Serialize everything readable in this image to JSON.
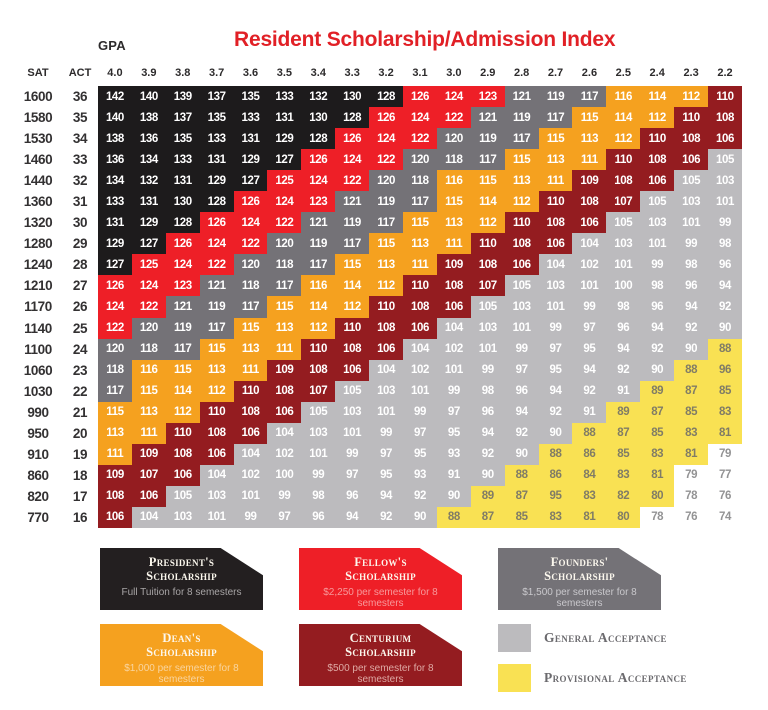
{
  "header": {
    "title": "Resident Scholarship/Admission Index",
    "title_color": "#e12026",
    "gpa_label": "GPA"
  },
  "chart_data": {
    "type": "heatmap",
    "title": "Resident Scholarship/Admission Index",
    "x_label": "GPA",
    "y_label_primary": "SAT",
    "y_label_secondary": "ACT",
    "x_categories": [
      "4.0",
      "3.9",
      "3.8",
      "3.7",
      "3.6",
      "3.5",
      "3.4",
      "3.3",
      "3.2",
      "3.1",
      "3.0",
      "2.9",
      "2.8",
      "2.7",
      "2.6",
      "2.5",
      "2.4",
      "2.3",
      "2.2"
    ],
    "tiers": {
      "p": {
        "name": "presidents-scholarship",
        "bg": "#1d1b1c",
        "fg": "#ffffff"
      },
      "f": {
        "name": "fellows-scholarship",
        "bg": "#ee1f27",
        "fg": "#ffffff"
      },
      "o": {
        "name": "founders-scholarship",
        "bg": "#747277",
        "fg": "#ffffff"
      },
      "d": {
        "name": "deans-scholarship",
        "bg": "#f5a11f",
        "fg": "#ffffff"
      },
      "c": {
        "name": "centurium-scholarship",
        "bg": "#941c20",
        "fg": "#ffffff"
      },
      "g": {
        "name": "general-acceptance",
        "bg": "#bcbbbe",
        "fg": "#ffffff"
      },
      "y": {
        "name": "provisional-acceptance",
        "bg": "#f9e153",
        "fg": "#807c66"
      },
      "w": {
        "name": "no-award",
        "bg": "#ffffff",
        "fg": "#939394"
      }
    },
    "rows": [
      {
        "sat": "1600",
        "act": "36",
        "values": [
          142,
          140,
          139,
          137,
          135,
          133,
          132,
          130,
          128,
          126,
          124,
          123,
          121,
          119,
          117,
          116,
          114,
          112,
          110
        ],
        "tiers": "pppppppppfffooodddc"
      },
      {
        "sat": "1580",
        "act": "35",
        "values": [
          140,
          138,
          137,
          135,
          133,
          131,
          130,
          128,
          126,
          124,
          122,
          121,
          119,
          117,
          115,
          114,
          112,
          110,
          108
        ],
        "tiers": "ppppppppfffooodddcc"
      },
      {
        "sat": "1530",
        "act": "34",
        "values": [
          138,
          136,
          135,
          133,
          131,
          129,
          128,
          126,
          124,
          122,
          120,
          119,
          117,
          115,
          113,
          112,
          110,
          108,
          106
        ],
        "tiers": "pppppppfffooodddccc"
      },
      {
        "sat": "1460",
        "act": "33",
        "values": [
          136,
          134,
          133,
          131,
          129,
          127,
          126,
          124,
          122,
          120,
          118,
          117,
          115,
          113,
          111,
          110,
          108,
          106,
          105
        ],
        "tiers": "ppppppfffooodddcccg"
      },
      {
        "sat": "1440",
        "act": "32",
        "values": [
          134,
          132,
          131,
          129,
          127,
          125,
          124,
          122,
          120,
          118,
          116,
          115,
          113,
          111,
          109,
          108,
          106,
          105,
          103
        ],
        "tiers": "pppppfffooddddcccgg"
      },
      {
        "sat": "1360",
        "act": "31",
        "values": [
          133,
          131,
          130,
          128,
          126,
          124,
          123,
          121,
          119,
          117,
          115,
          114,
          112,
          110,
          108,
          107,
          105,
          103,
          101
        ],
        "tiers": "ppppfffooodddcccggg"
      },
      {
        "sat": "1320",
        "act": "30",
        "values": [
          131,
          129,
          128,
          126,
          124,
          122,
          121,
          119,
          117,
          115,
          113,
          112,
          110,
          108,
          106,
          105,
          103,
          101,
          99
        ],
        "tiers": "pppfffooodddcccgggg"
      },
      {
        "sat": "1280",
        "act": "29",
        "values": [
          129,
          127,
          126,
          124,
          122,
          120,
          119,
          117,
          115,
          113,
          111,
          110,
          108,
          106,
          104,
          103,
          101,
          99,
          98
        ],
        "tiers": "ppfffooodddcccggggg"
      },
      {
        "sat": "1240",
        "act": "28",
        "values": [
          127,
          125,
          124,
          122,
          120,
          118,
          117,
          115,
          113,
          111,
          109,
          108,
          106,
          104,
          102,
          101,
          99,
          98,
          96
        ],
        "tiers": "pfffooodddcccgggggg"
      },
      {
        "sat": "1210",
        "act": "27",
        "values": [
          126,
          124,
          123,
          121,
          118,
          117,
          116,
          114,
          112,
          110,
          108,
          107,
          105,
          103,
          101,
          100,
          98,
          96,
          94
        ],
        "tiers": "fffooodddcccggggggg"
      },
      {
        "sat": "1170",
        "act": "26",
        "values": [
          124,
          122,
          121,
          119,
          117,
          115,
          114,
          112,
          110,
          108,
          106,
          105,
          103,
          101,
          99,
          98,
          96,
          94,
          92
        ],
        "tiers": "ffooodddcccgggggggg"
      },
      {
        "sat": "1140",
        "act": "25",
        "values": [
          122,
          120,
          119,
          117,
          115,
          113,
          112,
          110,
          108,
          106,
          104,
          103,
          101,
          99,
          97,
          96,
          94,
          92,
          90
        ],
        "tiers": "fooodddcccggggggggg"
      },
      {
        "sat": "1100",
        "act": "24",
        "values": [
          120,
          118,
          117,
          115,
          113,
          111,
          110,
          108,
          106,
          104,
          102,
          101,
          99,
          97,
          95,
          94,
          92,
          90,
          88
        ],
        "tiers": "ooodddcccgggggggggy"
      },
      {
        "sat": "1060",
        "act": "23",
        "values": [
          118,
          116,
          115,
          113,
          111,
          109,
          108,
          106,
          104,
          102,
          101,
          99,
          97,
          95,
          94,
          92,
          90,
          88,
          96
        ],
        "tiers": "oddddcccgggggggggyy"
      },
      {
        "sat": "1030",
        "act": "22",
        "values": [
          117,
          115,
          114,
          112,
          110,
          108,
          107,
          105,
          103,
          101,
          99,
          98,
          96,
          94,
          92,
          91,
          89,
          87,
          85
        ],
        "tiers": "odddcccgggggggggyyy"
      },
      {
        "sat": "990",
        "act": "21",
        "values": [
          115,
          113,
          112,
          110,
          108,
          106,
          105,
          103,
          101,
          99,
          97,
          96,
          94,
          92,
          91,
          89,
          87,
          85,
          83
        ],
        "tiers": "dddcccgggggggggyyyy"
      },
      {
        "sat": "950",
        "act": "20",
        "values": [
          113,
          111,
          110,
          108,
          106,
          104,
          103,
          101,
          99,
          97,
          95,
          94,
          92,
          90,
          88,
          87,
          85,
          83,
          81
        ],
        "tiers": "ddcccgggggggggyyyyy"
      },
      {
        "sat": "910",
        "act": "19",
        "values": [
          111,
          109,
          108,
          106,
          104,
          102,
          101,
          99,
          97,
          95,
          93,
          92,
          90,
          88,
          86,
          85,
          83,
          81,
          79
        ],
        "tiers": "dcccgggggggggyyyyyw"
      },
      {
        "sat": "860",
        "act": "18",
        "values": [
          109,
          107,
          106,
          104,
          102,
          100,
          99,
          97,
          95,
          93,
          91,
          90,
          88,
          86,
          84,
          83,
          81,
          79,
          77
        ],
        "tiers": "cccgggggggggyyyyyww"
      },
      {
        "sat": "820",
        "act": "17",
        "values": [
          108,
          106,
          105,
          103,
          101,
          99,
          98,
          96,
          94,
          92,
          90,
          89,
          87,
          95,
          83,
          82,
          80,
          78,
          76
        ],
        "tiers": "ccgggggggggyyyyyyww"
      },
      {
        "sat": "770",
        "act": "16",
        "values": [
          106,
          104,
          103,
          101,
          99,
          97,
          96,
          94,
          92,
          90,
          88,
          87,
          85,
          83,
          81,
          80,
          78,
          76,
          74
        ],
        "tiers": "cgggggggggyyyyyywww"
      }
    ]
  },
  "legend": {
    "badges": [
      {
        "title": "President's Scholarship",
        "subtitle": "Full Tuition for 8 semesters",
        "bg": "#231f20",
        "subtitle_color": "#a8a5a6"
      },
      {
        "title": "Fellow's Scholarship",
        "subtitle": "$2,250 per semester for 8 semesters",
        "bg": "#ee1f27",
        "subtitle_color": "#f7999b"
      },
      {
        "title": "Founders' Scholarship",
        "subtitle": "$1,500 per semester for 8 semesters",
        "bg": "#747277",
        "subtitle_color": "#c9c8cc"
      },
      {
        "title": "Dean's Scholarship",
        "subtitle": "$1,000 per semester for 8 semesters",
        "bg": "#f5a11f",
        "subtitle_color": "#f9d5a0"
      },
      {
        "title": "Centurium Scholarship",
        "subtitle": "$500 per semester for 8 semesters",
        "bg": "#941c20",
        "subtitle_color": "#dfaaa5"
      }
    ],
    "acceptance": [
      {
        "label": "General Acceptance",
        "swatch": "#bcbbbe"
      },
      {
        "label": "Provisional Acceptance",
        "swatch": "#f9e153"
      }
    ]
  }
}
